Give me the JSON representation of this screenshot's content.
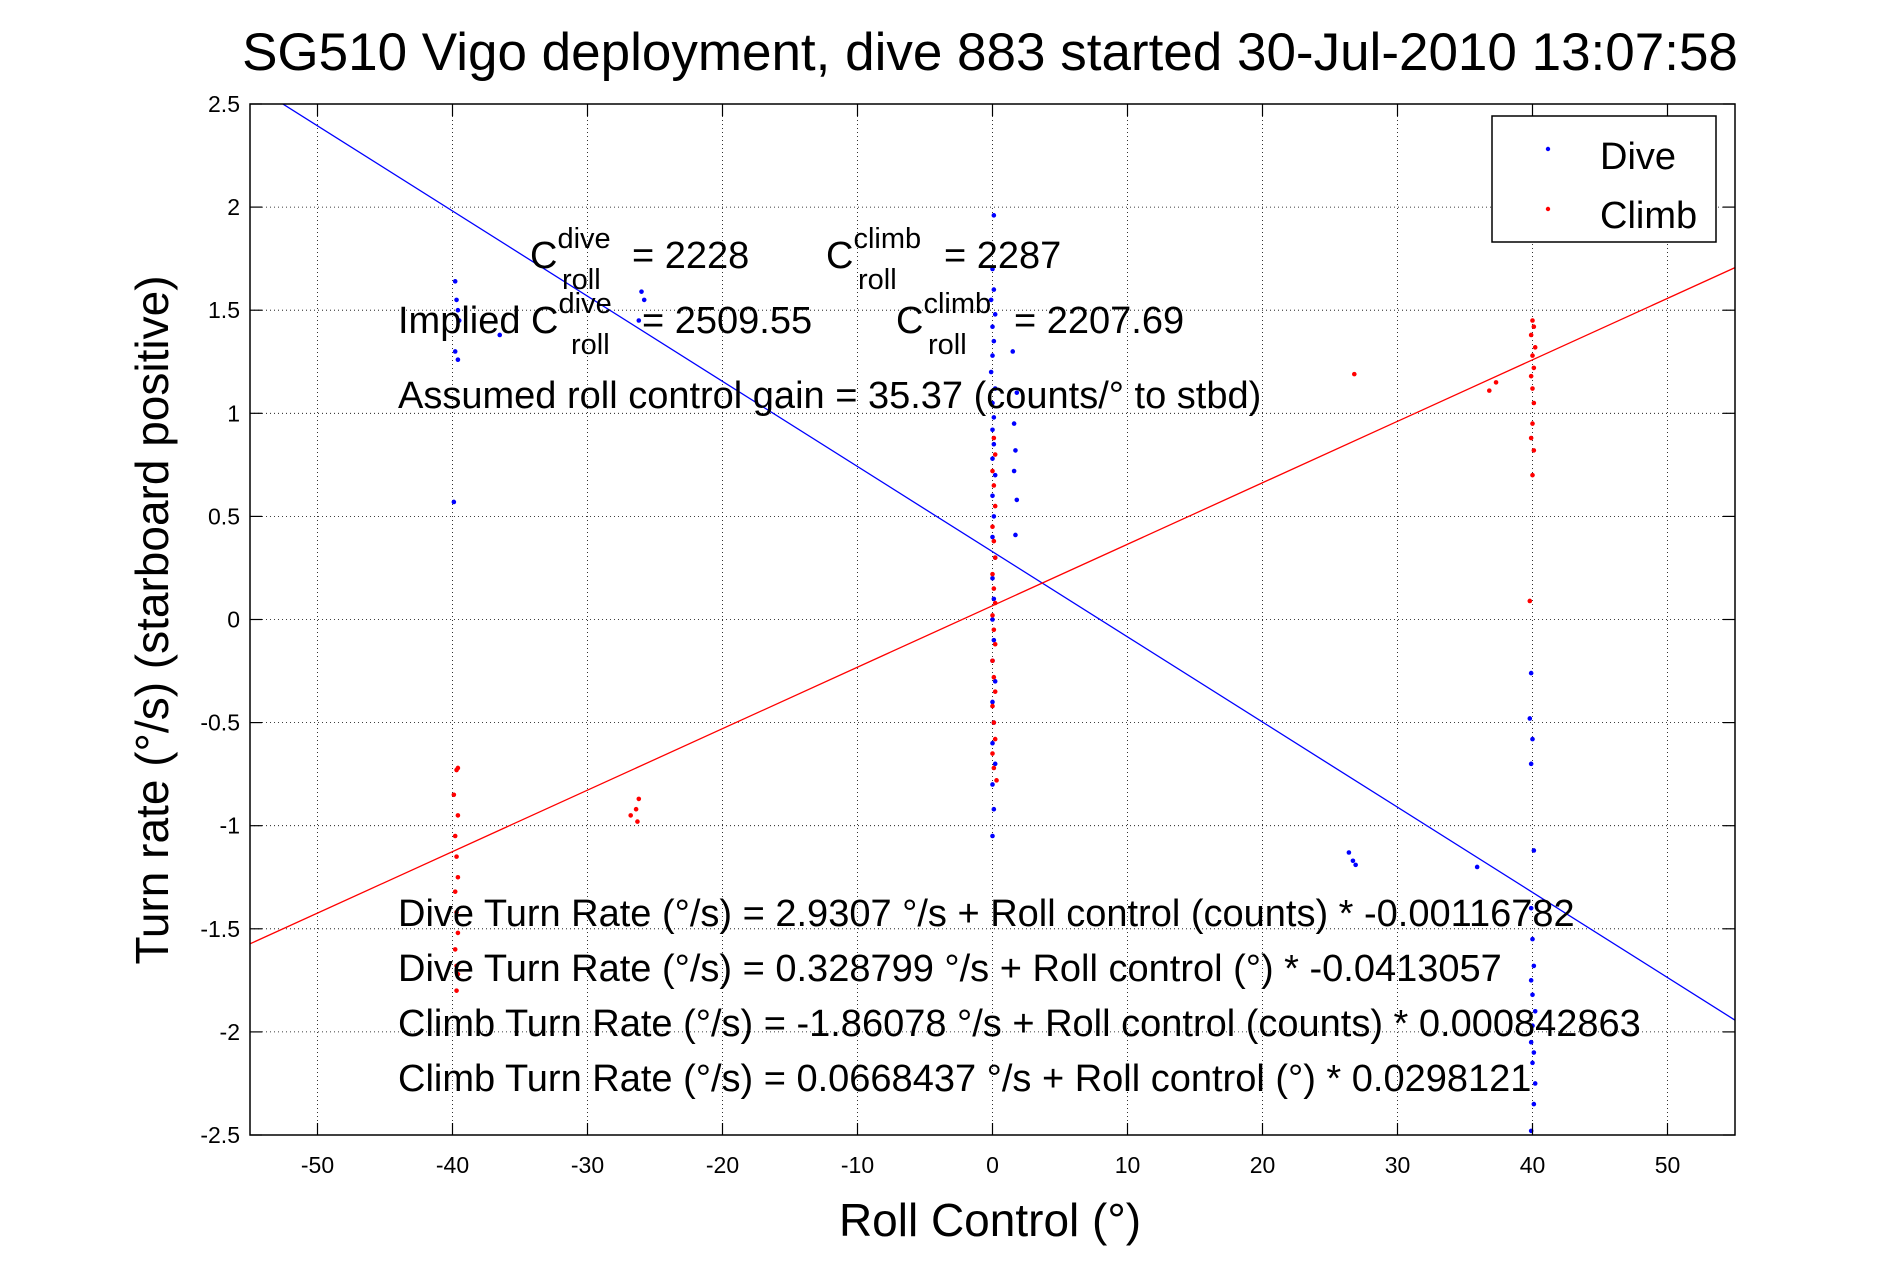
{
  "chart_data": {
    "type": "scatter",
    "title": "SG510 Vigo deployment, dive 883 started 30-Jul-2010 13:07:58",
    "xlabel": "Roll Control (°)",
    "ylabel": "Turn rate (°/s) (starboard positive)",
    "xlim": [
      -55,
      55
    ],
    "ylim": [
      -2.5,
      2.5
    ],
    "xticks": [
      -50,
      -40,
      -30,
      -20,
      -10,
      0,
      10,
      20,
      30,
      40,
      50
    ],
    "yticks": [
      -2.5,
      -2,
      -1.5,
      -1,
      -0.5,
      0,
      0.5,
      1,
      1.5,
      2,
      2.5
    ],
    "xtick_labels": [
      "-50",
      "-40",
      "-30",
      "-20",
      "-10",
      "0",
      "10",
      "20",
      "30",
      "40",
      "50"
    ],
    "ytick_labels": [
      "-2.5",
      "-2",
      "-1.5",
      "-1",
      "-0.5",
      "0",
      "0.5",
      "1",
      "1.5",
      "2",
      "2.5"
    ],
    "grid": true,
    "legend_position": "top-right",
    "series": [
      {
        "name": "Dive",
        "color": "#0000ff",
        "points": [
          [
            -39.8,
            1.64
          ],
          [
            -39.7,
            1.55
          ],
          [
            -39.6,
            1.5
          ],
          [
            -39.5,
            1.45
          ],
          [
            -39.8,
            1.3
          ],
          [
            -39.6,
            1.26
          ],
          [
            -39.9,
            0.57
          ],
          [
            -36.5,
            1.38
          ],
          [
            -26.0,
            1.59
          ],
          [
            -25.8,
            1.55
          ],
          [
            -26.2,
            1.45
          ],
          [
            0.1,
            1.96
          ],
          [
            0.0,
            1.7
          ],
          [
            0.1,
            1.6
          ],
          [
            -0.1,
            1.55
          ],
          [
            0.2,
            1.48
          ],
          [
            0.0,
            1.42
          ],
          [
            0.1,
            1.35
          ],
          [
            0.0,
            1.28
          ],
          [
            -0.1,
            1.2
          ],
          [
            0.2,
            1.12
          ],
          [
            0.0,
            1.05
          ],
          [
            0.1,
            0.98
          ],
          [
            0.0,
            0.92
          ],
          [
            0.1,
            0.85
          ],
          [
            0.0,
            0.78
          ],
          [
            0.2,
            0.7
          ],
          [
            0.0,
            0.6
          ],
          [
            0.1,
            0.5
          ],
          [
            0.0,
            0.4
          ],
          [
            0.2,
            0.3
          ],
          [
            0.0,
            0.2
          ],
          [
            0.1,
            0.1
          ],
          [
            0.0,
            0.0
          ],
          [
            0.1,
            -0.1
          ],
          [
            0.0,
            -0.2
          ],
          [
            0.2,
            -0.3
          ],
          [
            0.0,
            -0.4
          ],
          [
            0.1,
            -0.5
          ],
          [
            0.0,
            -0.6
          ],
          [
            0.2,
            -0.7
          ],
          [
            0.0,
            -0.8
          ],
          [
            0.1,
            -0.92
          ],
          [
            0.0,
            -1.05
          ],
          [
            1.5,
            1.3
          ],
          [
            1.8,
            1.1
          ],
          [
            1.6,
            0.95
          ],
          [
            1.7,
            0.82
          ],
          [
            1.6,
            0.72
          ],
          [
            1.8,
            0.58
          ],
          [
            1.7,
            0.41
          ],
          [
            26.4,
            -1.13
          ],
          [
            26.7,
            -1.17
          ],
          [
            26.9,
            -1.19
          ],
          [
            35.9,
            -1.2
          ],
          [
            39.9,
            -0.26
          ],
          [
            39.8,
            -0.48
          ],
          [
            40.0,
            -0.58
          ],
          [
            39.9,
            -0.7
          ],
          [
            40.1,
            -1.12
          ],
          [
            39.9,
            -1.4
          ],
          [
            40.0,
            -1.55
          ],
          [
            40.1,
            -1.68
          ],
          [
            39.9,
            -1.75
          ],
          [
            40.0,
            -1.82
          ],
          [
            40.2,
            -1.9
          ],
          [
            40.0,
            -1.97
          ],
          [
            39.9,
            -2.05
          ],
          [
            40.1,
            -2.1
          ],
          [
            40.0,
            -2.15
          ],
          [
            40.2,
            -2.25
          ],
          [
            40.1,
            -2.35
          ],
          [
            39.9,
            -2.48
          ]
        ]
      },
      {
        "name": "Climb",
        "color": "#ff0000",
        "points": [
          [
            -39.6,
            -0.72
          ],
          [
            -39.7,
            -0.73
          ],
          [
            -39.9,
            -0.85
          ],
          [
            -39.6,
            -0.95
          ],
          [
            -39.8,
            -1.05
          ],
          [
            -39.7,
            -1.15
          ],
          [
            -39.6,
            -1.25
          ],
          [
            -39.8,
            -1.32
          ],
          [
            -39.7,
            -1.42
          ],
          [
            -39.6,
            -1.52
          ],
          [
            -39.8,
            -1.6
          ],
          [
            -39.7,
            -1.68
          ],
          [
            -39.6,
            -1.72
          ],
          [
            -39.7,
            -1.8
          ],
          [
            -26.2,
            -0.87
          ],
          [
            -26.4,
            -0.92
          ],
          [
            -26.8,
            -0.95
          ],
          [
            -26.3,
            -0.98
          ],
          [
            0.1,
            0.88
          ],
          [
            0.2,
            0.8
          ],
          [
            0.0,
            0.72
          ],
          [
            0.1,
            0.65
          ],
          [
            0.2,
            0.55
          ],
          [
            0.0,
            0.45
          ],
          [
            0.1,
            0.38
          ],
          [
            0.2,
            0.3
          ],
          [
            0.0,
            0.22
          ],
          [
            0.1,
            0.15
          ],
          [
            0.2,
            0.08
          ],
          [
            0.0,
            0.02
          ],
          [
            0.1,
            -0.05
          ],
          [
            0.2,
            -0.12
          ],
          [
            0.0,
            -0.2
          ],
          [
            0.1,
            -0.28
          ],
          [
            0.2,
            -0.35
          ],
          [
            0.0,
            -0.42
          ],
          [
            0.1,
            -0.5
          ],
          [
            0.2,
            -0.58
          ],
          [
            0.0,
            -0.65
          ],
          [
            0.1,
            -0.72
          ],
          [
            0.3,
            -0.78
          ],
          [
            26.8,
            1.19
          ],
          [
            36.8,
            1.11
          ],
          [
            37.3,
            1.15
          ],
          [
            40.0,
            1.45
          ],
          [
            40.1,
            1.42
          ],
          [
            39.9,
            1.38
          ],
          [
            40.2,
            1.32
          ],
          [
            40.0,
            1.28
          ],
          [
            40.1,
            1.22
          ],
          [
            39.9,
            1.18
          ],
          [
            40.0,
            1.12
          ],
          [
            40.1,
            1.05
          ],
          [
            40.0,
            0.95
          ],
          [
            39.9,
            0.88
          ],
          [
            40.1,
            0.82
          ],
          [
            40.0,
            0.7
          ],
          [
            39.8,
            0.09
          ]
        ]
      }
    ],
    "fit_lines": [
      {
        "name": "Dive fit",
        "color": "#0000ff",
        "intercept": 0.328799,
        "slope": -0.0413057
      },
      {
        "name": "Climb fit",
        "color": "#ff0000",
        "intercept": 0.0668437,
        "slope": 0.0298121
      }
    ],
    "annotations": {
      "c_dive": {
        "base": "C",
        "sup": "dive",
        "sub": "roll",
        "value": "= 2228"
      },
      "c_climb": {
        "base": "C",
        "sup": "climb",
        "sub": "roll",
        "value": "= 2287"
      },
      "implied_dive": {
        "prefix": "Implied C",
        "sup": "dive",
        "sub": "roll",
        "value": "= 2509.55"
      },
      "implied_climb": {
        "base": "C",
        "sup": "climb",
        "sub": "roll",
        "value": "= 2207.69"
      },
      "gain": "Assumed roll control gain = 35.37 (counts/° to stbd)",
      "equations": [
        "Dive Turn Rate (°/s) = 2.9307 °/s + Roll control (counts) * -0.00116782",
        "Dive Turn Rate (°/s) = 0.328799 °/s + Roll control (°) * -0.0413057",
        "Climb Turn Rate (°/s) = -1.86078 °/s + Roll control (counts) * 0.000842863",
        "Climb Turn Rate (°/s) = 0.0668437 °/s + Roll control (°) * 0.0298121"
      ]
    }
  }
}
